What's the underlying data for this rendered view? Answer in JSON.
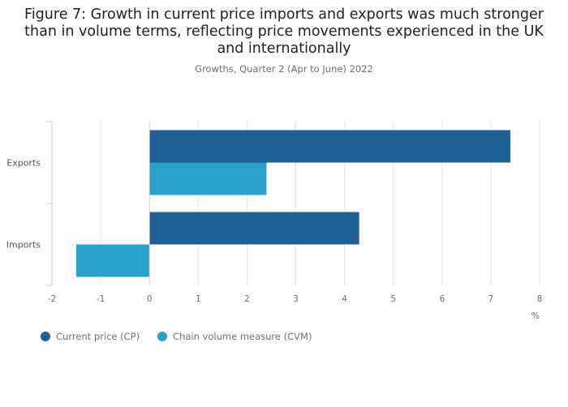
{
  "header": {
    "title": "Figure 7: Growth in current price imports and exports was much stronger than in volume terms, reflecting price movements experienced in the UK and internationally",
    "subtitle": "Growths, Quarter 2 (Apr to June) 2022"
  },
  "chart_data": {
    "type": "bar",
    "orientation": "horizontal",
    "categories": [
      "Exports",
      "Imports"
    ],
    "series": [
      {
        "name": "Current price (CP)",
        "values": [
          7.4,
          4.3
        ],
        "color": "#206095"
      },
      {
        "name": "Chain volume measure (CVM)",
        "values": [
          2.4,
          -1.5
        ],
        "color": "#27a0cc"
      }
    ],
    "xlim": [
      -2,
      8
    ],
    "xticks": [
      -2,
      -1,
      0,
      1,
      2,
      3,
      4,
      5,
      6,
      7,
      8
    ],
    "xlabel": "%",
    "ylabel": "",
    "grid": "vertical",
    "legend": "bottom-left"
  }
}
